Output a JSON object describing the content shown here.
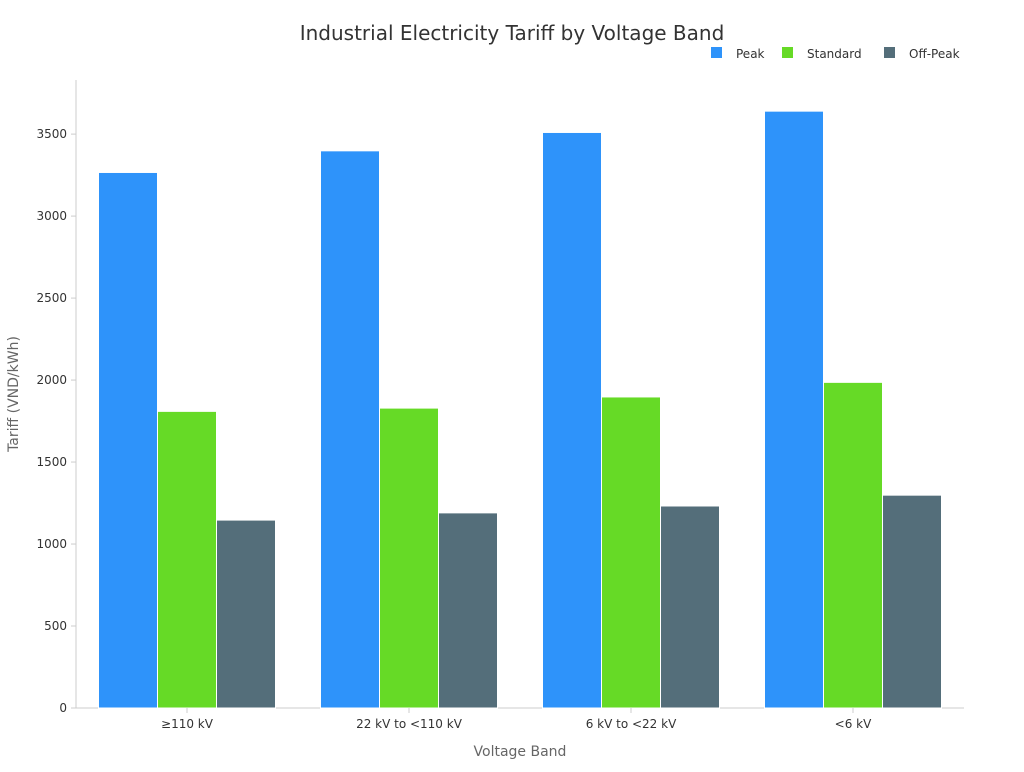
{
  "chart_data": {
    "type": "bar",
    "title": "Industrial Electricity Tariff by Voltage Band",
    "xlabel": "Voltage Band",
    "ylabel": "Tariff (VND/kWh)",
    "categories": [
      "≥110 kV",
      "22 kV to <110 kV",
      "6 kV to <22 kV",
      "<6 kV"
    ],
    "series": [
      {
        "name": "Peak",
        "color": "#2E93FA",
        "values": [
          3266,
          3398,
          3510,
          3640
        ]
      },
      {
        "name": "Standard",
        "color": "#66DA26",
        "values": [
          1809,
          1829,
          1897,
          1986
        ]
      },
      {
        "name": "Off-Peak",
        "color": "#546E7A",
        "values": [
          1146,
          1190,
          1232,
          1298
        ]
      }
    ],
    "ylim": [
      0,
      3830
    ],
    "yticks": [
      0,
      500,
      1000,
      1500,
      2000,
      2500,
      3000,
      3500
    ],
    "grid": false,
    "legend_position": "top-right"
  }
}
